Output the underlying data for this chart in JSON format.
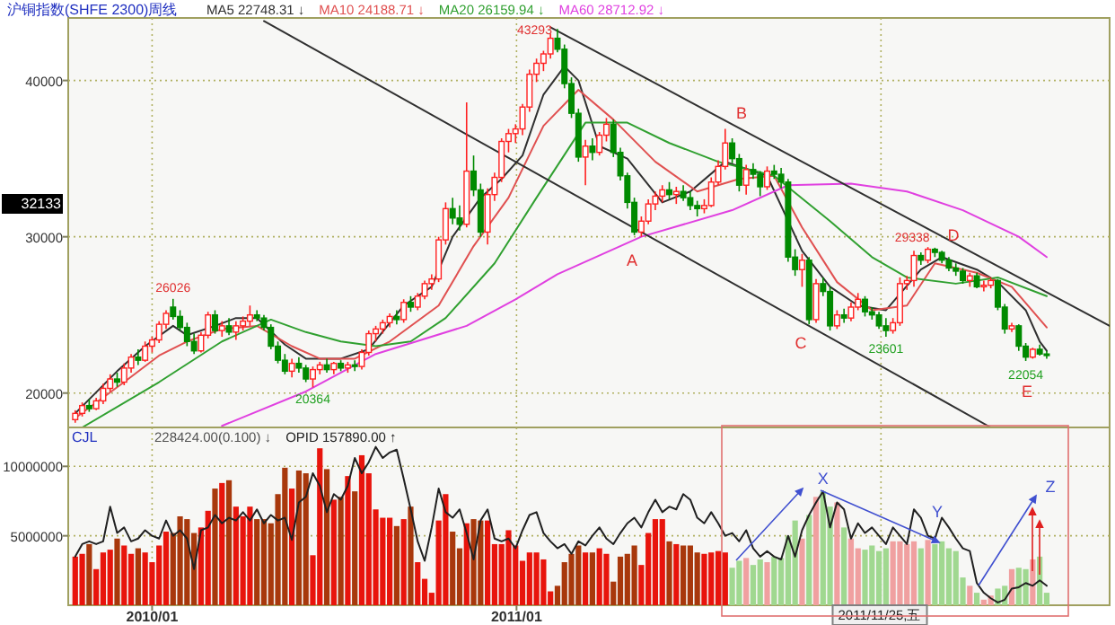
{
  "chart_data": [
    {
      "type": "candlestick",
      "title": "沪铜指数(SHFE 2300)周线",
      "legend": "top",
      "grid": true,
      "tick_labels": "y",
      "xlim": [
        "2009-10-09",
        "2012-08-17"
      ],
      "ylim": [
        17800,
        44000
      ],
      "yticks": [
        20000,
        30000,
        40000
      ],
      "xticks": [
        {
          "value": "2010-01-01",
          "label": null
        },
        {
          "value": "2011-01-01",
          "label": null
        },
        {
          "value": "2012-01-01",
          "label": null
        }
      ],
      "x": [
        "2009-10-16",
        "2009-10-23",
        "2009-10-30",
        "2009-11-06",
        "2009-11-13",
        "2009-11-20",
        "2009-11-27",
        "2009-12-04",
        "2009-12-11",
        "2009-12-18",
        "2009-12-25",
        "2010-01-01",
        "2010-01-08",
        "2010-01-15",
        "2010-01-22",
        "2010-01-29",
        "2010-02-05",
        "2010-02-12",
        "2010-02-19",
        "2010-02-26",
        "2010-03-05",
        "2010-03-12",
        "2010-03-19",
        "2010-03-26",
        "2010-04-02",
        "2010-04-09",
        "2010-04-16",
        "2010-04-23",
        "2010-04-30",
        "2010-05-07",
        "2010-05-14",
        "2010-05-21",
        "2010-05-28",
        "2010-06-04",
        "2010-06-11",
        "2010-06-18",
        "2010-06-25",
        "2010-07-02",
        "2010-07-09",
        "2010-07-16",
        "2010-07-23",
        "2010-07-30",
        "2010-08-06",
        "2010-08-13",
        "2010-08-20",
        "2010-08-27",
        "2010-09-03",
        "2010-09-10",
        "2010-09-17",
        "2010-09-24",
        "2010-10-01",
        "2010-10-08",
        "2010-10-15",
        "2010-10-22",
        "2010-10-29",
        "2010-11-05",
        "2010-11-12",
        "2010-11-19",
        "2010-11-26",
        "2010-12-03",
        "2010-12-10",
        "2010-12-17",
        "2010-12-24",
        "2010-12-31",
        "2011-01-07",
        "2011-01-14",
        "2011-01-21",
        "2011-01-28",
        "2011-02-04",
        "2011-02-11",
        "2011-02-18",
        "2011-02-25",
        "2011-03-04",
        "2011-03-11",
        "2011-03-18",
        "2011-03-25",
        "2011-04-01",
        "2011-04-08",
        "2011-04-15",
        "2011-04-22",
        "2011-04-29",
        "2011-05-06",
        "2011-05-13",
        "2011-05-20",
        "2011-05-27",
        "2011-06-03",
        "2011-06-10",
        "2011-06-17",
        "2011-06-24",
        "2011-07-01",
        "2011-07-08",
        "2011-07-15",
        "2011-07-22",
        "2011-07-29",
        "2011-08-05",
        "2011-08-12",
        "2011-08-19",
        "2011-08-26",
        "2011-09-02",
        "2011-09-09",
        "2011-09-16",
        "2011-09-23",
        "2011-09-30",
        "2011-10-07",
        "2011-10-14",
        "2011-10-21",
        "2011-10-28",
        "2011-11-04",
        "2011-11-11",
        "2011-11-18",
        "2011-11-25",
        "2011-12-02",
        "2011-12-09",
        "2011-12-16",
        "2011-12-23",
        "2011-12-30",
        "2012-01-06",
        "2012-01-13",
        "2012-01-20",
        "2012-01-27",
        "2012-02-03",
        "2012-02-10",
        "2012-02-17",
        "2012-02-24",
        "2012-03-02",
        "2012-03-09",
        "2012-03-16",
        "2012-03-23",
        "2012-03-30",
        "2012-04-06",
        "2012-04-13",
        "2012-04-20",
        "2012-04-27",
        "2012-05-04",
        "2012-05-11",
        "2012-05-18",
        "2012-05-25",
        "2012-06-01",
        "2012-06-08",
        "2012-06-15"
      ],
      "ohlc": [
        [
          18300,
          18900,
          18100,
          18700
        ],
        [
          18700,
          19400,
          18500,
          19200
        ],
        [
          19200,
          19600,
          18800,
          19000
        ],
        [
          19000,
          19700,
          18900,
          19500
        ],
        [
          19500,
          20600,
          19300,
          20300
        ],
        [
          20300,
          21200,
          20100,
          20900
        ],
        [
          20900,
          21300,
          20400,
          20700
        ],
        [
          20700,
          21900,
          20500,
          21600
        ],
        [
          21600,
          22500,
          21300,
          22300
        ],
        [
          22300,
          22800,
          21800,
          22100
        ],
        [
          22100,
          23300,
          22000,
          23000
        ],
        [
          23000,
          23600,
          22600,
          23400
        ],
        [
          23400,
          24600,
          23200,
          24400
        ],
        [
          24400,
          25300,
          24100,
          25100
        ],
        [
          25500,
          26026,
          24700,
          24900
        ],
        [
          24900,
          25300,
          24000,
          24200
        ],
        [
          24200,
          24500,
          23000,
          23300
        ],
        [
          23300,
          23800,
          22500,
          22700
        ],
        [
          22700,
          23900,
          22600,
          23700
        ],
        [
          23700,
          25200,
          23500,
          25000
        ],
        [
          25000,
          25300,
          23800,
          24000
        ],
        [
          24000,
          24600,
          23600,
          24300
        ],
        [
          24300,
          24800,
          23700,
          23900
        ],
        [
          23900,
          24600,
          23400,
          24300
        ],
        [
          24300,
          24900,
          24000,
          24600
        ],
        [
          24600,
          25600,
          24300,
          25000
        ],
        [
          25000,
          25300,
          24600,
          24800
        ],
        [
          24800,
          25000,
          24000,
          24200
        ],
        [
          24200,
          24400,
          22800,
          23000
        ],
        [
          23000,
          23300,
          21900,
          22100
        ],
        [
          22100,
          22500,
          21200,
          21400
        ],
        [
          21400,
          22200,
          21000,
          21900
        ],
        [
          21900,
          22300,
          21300,
          21600
        ],
        [
          21600,
          21800,
          20700,
          20900
        ],
        [
          20900,
          21700,
          20364,
          21500
        ],
        [
          21500,
          22000,
          21200,
          21800
        ],
        [
          21800,
          22200,
          21300,
          21500
        ],
        [
          21500,
          22000,
          21200,
          21900
        ],
        [
          21900,
          22100,
          21400,
          21600
        ],
        [
          21600,
          22000,
          21300,
          21800
        ],
        [
          21800,
          22100,
          21400,
          21700
        ],
        [
          21700,
          22800,
          21500,
          22600
        ],
        [
          22600,
          24000,
          22400,
          23800
        ],
        [
          23800,
          24300,
          23300,
          24100
        ],
        [
          24100,
          24700,
          23800,
          24500
        ],
        [
          24500,
          25100,
          24200,
          24900
        ],
        [
          24900,
          25300,
          24400,
          24700
        ],
        [
          24700,
          26000,
          24500,
          25800
        ],
        [
          25800,
          26200,
          25200,
          25500
        ],
        [
          25500,
          26400,
          25300,
          26200
        ],
        [
          26200,
          27200,
          26000,
          27000
        ],
        [
          27000,
          27600,
          26600,
          27300
        ],
        [
          27300,
          30000,
          27100,
          29800
        ],
        [
          29800,
          32200,
          29500,
          31800
        ],
        [
          31800,
          32500,
          30800,
          31200
        ],
        [
          31200,
          32000,
          30400,
          30800
        ],
        [
          30800,
          38600,
          30600,
          34200
        ],
        [
          34200,
          35200,
          32600,
          33000
        ],
        [
          33000,
          33400,
          30000,
          30300
        ],
        [
          30300,
          33100,
          29500,
          32700
        ],
        [
          32700,
          34100,
          32300,
          33800
        ],
        [
          33800,
          36300,
          33500,
          36100
        ],
        [
          36100,
          36900,
          35400,
          36600
        ],
        [
          36600,
          37200,
          36000,
          36900
        ],
        [
          36900,
          38500,
          36500,
          38300
        ],
        [
          38300,
          40700,
          38000,
          40400
        ],
        [
          40400,
          41400,
          39900,
          41100
        ],
        [
          41100,
          41900,
          40600,
          41700
        ],
        [
          41700,
          43000,
          41400,
          42700
        ],
        [
          42700,
          43293,
          41800,
          42000
        ],
        [
          42000,
          42300,
          39500,
          39800
        ],
        [
          39800,
          40200,
          37600,
          37900
        ],
        [
          37900,
          38200,
          34800,
          35100
        ],
        [
          35100,
          36200,
          33300,
          35800
        ],
        [
          35800,
          36300,
          34900,
          35400
        ],
        [
          35400,
          36700,
          35200,
          36500
        ],
        [
          36500,
          37600,
          36100,
          37200
        ],
        [
          37200,
          37500,
          35100,
          35400
        ],
        [
          35400,
          35700,
          33600,
          33900
        ],
        [
          33900,
          34100,
          31800,
          32200
        ],
        [
          32200,
          32500,
          30100,
          30300
        ],
        [
          30300,
          31300,
          30000,
          31000
        ],
        [
          31000,
          32400,
          30800,
          32100
        ],
        [
          32100,
          32900,
          31700,
          32600
        ],
        [
          32600,
          33300,
          32200,
          33000
        ],
        [
          33000,
          33500,
          32400,
          32700
        ],
        [
          32700,
          33200,
          32100,
          32900
        ],
        [
          32900,
          33300,
          32300,
          32500
        ],
        [
          32500,
          32900,
          31700,
          32000
        ],
        [
          32000,
          32300,
          31300,
          31800
        ],
        [
          31800,
          32400,
          31500,
          32000
        ],
        [
          32000,
          33800,
          31900,
          33500
        ],
        [
          33500,
          34900,
          33300,
          34500
        ],
        [
          34500,
          36900,
          34300,
          36000
        ],
        [
          36000,
          36300,
          34700,
          35000
        ],
        [
          35000,
          35300,
          32900,
          33300
        ],
        [
          33300,
          34600,
          32700,
          34300
        ],
        [
          34300,
          34700,
          33700,
          34000
        ],
        [
          34000,
          34200,
          32600,
          33200
        ],
        [
          33200,
          34500,
          33000,
          34200
        ],
        [
          34200,
          34600,
          33700,
          34000
        ],
        [
          34000,
          34400,
          33100,
          33500
        ],
        [
          33500,
          33700,
          28400,
          28700
        ],
        [
          28700,
          29200,
          27500,
          27900
        ],
        [
          27900,
          28900,
          26800,
          28500
        ],
        [
          28500,
          28700,
          24400,
          24700
        ],
        [
          24700,
          27300,
          24500,
          27000
        ],
        [
          27000,
          27400,
          26200,
          26500
        ],
        [
          26500,
          26800,
          24000,
          24300
        ],
        [
          24300,
          25300,
          24100,
          25000
        ],
        [
          25000,
          25400,
          24500,
          24800
        ],
        [
          24800,
          25800,
          24600,
          25500
        ],
        [
          25500,
          26400,
          25300,
          26000
        ],
        [
          26000,
          26200,
          24900,
          25200
        ],
        [
          25200,
          25500,
          24700,
          25000
        ],
        [
          25000,
          25200,
          24100,
          24300
        ],
        [
          24300,
          24800,
          23601,
          24000
        ],
        [
          24000,
          24800,
          23800,
          24500
        ],
        [
          24500,
          27400,
          24300,
          27000
        ],
        [
          27000,
          27500,
          26600,
          27200
        ],
        [
          27200,
          29100,
          26800,
          28800
        ],
        [
          28800,
          29000,
          28200,
          28500
        ],
        [
          28500,
          29338,
          28300,
          29200
        ],
        [
          29200,
          29300,
          28700,
          29000
        ],
        [
          29000,
          29100,
          28300,
          28500
        ],
        [
          28500,
          28700,
          27800,
          28000
        ],
        [
          28000,
          28300,
          27500,
          27800
        ],
        [
          27800,
          28000,
          27000,
          27200
        ],
        [
          27200,
          27700,
          26800,
          27500
        ],
        [
          27500,
          27700,
          26700,
          26800
        ],
        [
          26800,
          27200,
          26500,
          26900
        ],
        [
          26900,
          27400,
          26700,
          27200
        ],
        [
          27200,
          27300,
          25300,
          25500
        ],
        [
          25500,
          25700,
          23800,
          24100
        ],
        [
          24100,
          24500,
          23900,
          24300
        ],
        [
          24300,
          24400,
          22700,
          23000
        ],
        [
          23000,
          23200,
          22054,
          22300
        ],
        [
          22300,
          22900,
          22200,
          22800
        ],
        [
          22800,
          23100,
          22400,
          22500
        ],
        [
          22500,
          22700,
          22200,
          22400
        ]
      ],
      "series": [
        {
          "type": "line",
          "name": "MA5 22748.31 ↓",
          "color": "#303030",
          "x": [
            "2009-10-16",
            "2009-11-27",
            "2009-12-25",
            "2010-01-22",
            "2010-02-05",
            "2010-03-05",
            "2010-03-26",
            "2010-04-16",
            "2010-05-14",
            "2010-06-04",
            "2010-07-09",
            "2010-08-06",
            "2010-09-10",
            "2010-10-08",
            "2010-10-29",
            "2010-11-26",
            "2010-12-17",
            "2011-01-07",
            "2011-01-28",
            "2011-02-18",
            "2011-03-04",
            "2011-03-25",
            "2011-04-22",
            "2011-05-27",
            "2011-06-24",
            "2011-07-29",
            "2011-09-09",
            "2011-10-14",
            "2011-11-11",
            "2011-12-09",
            "2012-01-06",
            "2012-02-10",
            "2012-03-02",
            "2012-04-06",
            "2012-04-27",
            "2012-05-25",
            "2012-06-08",
            "2012-06-15"
          ],
          "values": [
            18700,
            21400,
            23000,
            24300,
            23700,
            24300,
            24800,
            24800,
            23100,
            22200,
            22200,
            22800,
            25600,
            26800,
            30000,
            32500,
            33700,
            35200,
            39100,
            40900,
            40000,
            35800,
            35000,
            32200,
            32900,
            34800,
            33900,
            29100,
            26800,
            25600,
            25300,
            27900,
            28700,
            27900,
            27100,
            25300,
            23300,
            22700
          ]
        },
        {
          "type": "line",
          "name": "MA10 24188.71 ↓",
          "color": "#e05050",
          "x": [
            "2009-10-16",
            "2009-12-04",
            "2010-01-08",
            "2010-02-05",
            "2010-03-12",
            "2010-04-16",
            "2010-05-21",
            "2010-06-18",
            "2010-07-23",
            "2010-08-27",
            "2010-10-15",
            "2010-11-19",
            "2010-12-24",
            "2011-01-28",
            "2011-03-04",
            "2011-04-08",
            "2011-05-20",
            "2011-07-01",
            "2011-08-12",
            "2011-09-16",
            "2011-10-14",
            "2011-11-18",
            "2011-12-23",
            "2012-01-27",
            "2012-02-24",
            "2012-04-06",
            "2012-05-11",
            "2012-06-15"
          ],
          "values": [
            18400,
            20700,
            22400,
            23300,
            24100,
            24300,
            23000,
            22200,
            22200,
            23300,
            25600,
            29400,
            32500,
            37100,
            39400,
            37500,
            34800,
            32900,
            33700,
            33900,
            30600,
            27100,
            25300,
            25600,
            28300,
            27700,
            26800,
            24200
          ]
        },
        {
          "type": "line",
          "name": "MA20 26159.94 ↓",
          "color": "#30a030",
          "x": [
            "2009-10-23",
            "2010-01-08",
            "2010-03-12",
            "2010-04-30",
            "2010-06-04",
            "2010-07-09",
            "2010-08-13",
            "2010-09-17",
            "2010-10-22",
            "2010-12-10",
            "2011-01-21",
            "2011-03-11",
            "2011-04-22",
            "2011-06-03",
            "2011-07-22",
            "2011-09-16",
            "2011-11-11",
            "2011-12-23",
            "2012-01-27",
            "2012-03-16",
            "2012-04-27",
            "2012-06-15"
          ],
          "values": [
            17800,
            20700,
            23300,
            24700,
            23900,
            23300,
            23000,
            23300,
            24800,
            28300,
            32500,
            37300,
            37300,
            36000,
            34800,
            33900,
            31000,
            28700,
            27400,
            27000,
            27400,
            26200
          ]
        },
        {
          "type": "line",
          "name": "MA60 28712.92 ↓",
          "color": "#e040e0",
          "x": [
            "2010-03-12",
            "2010-06-04",
            "2010-08-13",
            "2010-11-12",
            "2010-12-31",
            "2011-02-11",
            "2011-05-06",
            "2011-08-05",
            "2011-09-30",
            "2011-12-02",
            "2012-01-27",
            "2012-03-23",
            "2012-05-18",
            "2012-06-15"
          ],
          "values": [
            17900,
            20100,
            22500,
            24300,
            26000,
            27600,
            30000,
            31700,
            33300,
            33400,
            32900,
            31700,
            30000,
            28700
          ]
        },
        {
          "type": "line",
          "color": "#303030",
          "x": [
            "2010-04-23",
            "2012-04-20"
          ],
          "values": [
            43800,
            17800
          ]
        },
        {
          "type": "line",
          "color": "#303030",
          "x": [
            "2011-02-04",
            "2012-08-17"
          ],
          "values": [
            43400,
            24300
          ]
        }
      ],
      "annotations": [
        {
          "text": "43293",
          "x": "2011-02-11",
          "y": 43293
        },
        {
          "text": "26026",
          "x": "2010-01-22",
          "y": 26026
        },
        {
          "text": "20364",
          "x": "2010-06-11",
          "y": 20364
        },
        {
          "text": "23601",
          "x": "2012-01-06",
          "y": 23601
        },
        {
          "text": "29338",
          "x": "2012-02-17",
          "y": 29338
        },
        {
          "text": "22054",
          "x": "2012-05-25",
          "y": 22054
        },
        "A",
        "B",
        "C",
        "D",
        "E",
        "32133"
      ]
    },
    {
      "type": "bar",
      "title": "CJL",
      "legend": "top left",
      "grid": true,
      "xlim": [
        "2009-10-09",
        "2012-08-17"
      ],
      "ylim": [
        0,
        12800000
      ],
      "yticks": [
        5000000,
        10000000
      ],
      "xticks": [
        {
          "value": "2010-01-01",
          "label": "2010/01"
        },
        {
          "value": "2011-01-01",
          "label": "2011/01"
        },
        {
          "value": "2012-01-01",
          "label": null
        }
      ],
      "x": [
        "2009-10-16",
        "2009-10-23",
        "2009-10-30",
        "2009-11-06",
        "2009-11-13",
        "2009-11-20",
        "2009-11-27",
        "2009-12-04",
        "2009-12-11",
        "2009-12-18",
        "2009-12-25",
        "2010-01-01",
        "2010-01-08",
        "2010-01-15",
        "2010-01-22",
        "2010-01-29",
        "2010-02-05",
        "2010-02-12",
        "2010-02-19",
        "2010-02-26",
        "2010-03-05",
        "2010-03-12",
        "2010-03-19",
        "2010-03-26",
        "2010-04-02",
        "2010-04-09",
        "2010-04-16",
        "2010-04-23",
        "2010-04-30",
        "2010-05-07",
        "2010-05-14",
        "2010-05-21",
        "2010-05-28",
        "2010-06-04",
        "2010-06-11",
        "2010-06-18",
        "2010-06-25",
        "2010-07-02",
        "2010-07-09",
        "2010-07-16",
        "2010-07-23",
        "2010-07-30",
        "2010-08-06",
        "2010-08-13",
        "2010-08-20",
        "2010-08-27",
        "2010-09-03",
        "2010-09-10",
        "2010-09-17",
        "2010-09-24",
        "2010-10-01",
        "2010-10-08",
        "2010-10-15",
        "2010-10-22",
        "2010-10-29",
        "2010-11-05",
        "2010-11-12",
        "2010-11-19",
        "2010-11-26",
        "2010-12-03",
        "2010-12-10",
        "2010-12-17",
        "2010-12-24",
        "2010-12-31",
        "2011-01-07",
        "2011-01-14",
        "2011-01-21",
        "2011-01-28",
        "2011-02-04",
        "2011-02-11",
        "2011-02-18",
        "2011-02-25",
        "2011-03-04",
        "2011-03-11",
        "2011-03-18",
        "2011-03-25",
        "2011-04-01",
        "2011-04-08",
        "2011-04-15",
        "2011-04-22",
        "2011-04-29",
        "2011-05-06",
        "2011-05-13",
        "2011-05-20",
        "2011-05-27",
        "2011-06-03",
        "2011-06-10",
        "2011-06-17",
        "2011-06-24",
        "2011-07-01",
        "2011-07-08",
        "2011-07-15",
        "2011-07-22",
        "2011-07-29",
        "2011-08-05",
        "2011-08-12",
        "2011-08-19",
        "2011-08-26",
        "2011-09-02",
        "2011-09-09",
        "2011-09-16",
        "2011-09-23",
        "2011-09-30",
        "2011-10-07",
        "2011-10-14",
        "2011-10-21",
        "2011-10-28",
        "2011-11-04",
        "2011-11-11",
        "2011-11-18",
        "2011-11-25",
        "2011-12-02",
        "2011-12-09",
        "2011-12-16",
        "2011-12-23",
        "2011-12-30",
        "2012-01-06",
        "2012-01-13",
        "2012-01-20",
        "2012-01-27",
        "2012-02-03",
        "2012-02-10",
        "2012-02-17",
        "2012-02-24",
        "2012-03-02",
        "2012-03-09",
        "2012-03-16",
        "2012-03-23",
        "2012-03-30",
        "2012-04-06",
        "2012-04-13",
        "2012-04-20",
        "2012-04-27",
        "2012-05-04",
        "2012-05-11",
        "2012-05-18",
        "2012-05-25",
        "2012-06-01",
        "2012-06-08",
        "2012-06-15"
      ],
      "series": [
        {
          "name": "228424.00(0.100) ↓",
          "color": "#505050",
          "values": [
            3500000,
            3700000,
            4400000,
            2600000,
            3800000,
            4000000,
            4800000,
            4300000,
            3700000,
            4100000,
            3800000,
            3100000,
            4300000,
            5300000,
            5200000,
            6400000,
            6200000,
            5200000,
            5600000,
            6800000,
            8400000,
            8800000,
            9000000,
            7100000,
            6400000,
            7100000,
            6200000,
            6200000,
            5900000,
            8000000,
            9900000,
            8400000,
            9700000,
            9500000,
            3600000,
            11300000,
            9800000,
            7600000,
            7800000,
            9300000,
            8200000,
            10800000,
            9500000,
            6900000,
            6300000,
            6300000,
            5700000,
            6200000,
            7100000,
            3100000,
            1900000,
            900000,
            6100000,
            8000000,
            5300000,
            4100000,
            5900000,
            6200000,
            6100000,
            6100000,
            4400000,
            4400000,
            5400000,
            4300000,
            3200000,
            3800000,
            3800000,
            3300000,
            1000000,
            1400000,
            3100000,
            3700000,
            4300000,
            3800000,
            3800000,
            4100000,
            3700000,
            1700000,
            3500000,
            3700000,
            4300000,
            2900000,
            5200000,
            6200000,
            6200000,
            4600000,
            4400000,
            4300000,
            4300000,
            3800000,
            3700000,
            3800000,
            3900000,
            3800000,
            2700000,
            3200000,
            3400000,
            2900000,
            3300000,
            3100000,
            3500000,
            3400000,
            5000000,
            6100000,
            4800000,
            6500000,
            7800000,
            8200000,
            7100000,
            7400000,
            5600000,
            4800000,
            4100000,
            4000000,
            4300000,
            3900000,
            4100000,
            4600000,
            4600000,
            4400000,
            4600000,
            4100000,
            4700000,
            4400000,
            4600000,
            4100000,
            3900000,
            2000000,
            1400000,
            900000,
            400000,
            700000,
            1200000,
            1400000,
            2600000,
            2700000,
            2600000,
            3300000,
            3500000,
            900000
          ],
          "colors": [
            "#e8140c",
            "#e8140c",
            "#a8380c",
            "#e8140c",
            "#e8140c",
            "#e8140c",
            "#a8380c",
            "#e8140c",
            "#e8140c",
            "#a8380c",
            "#e8140c",
            "#e8140c",
            "#e8140c",
            "#e8140c",
            "#a8380c",
            "#a8380c",
            "#a8380c",
            "#a8380c",
            "#e8140c",
            "#e8140c",
            "#a8380c",
            "#e8140c",
            "#a8380c",
            "#e8140c",
            "#e8140c",
            "#e8140c",
            "#a8380c",
            "#a8380c",
            "#a8380c",
            "#a8380c",
            "#a8380c",
            "#e8140c",
            "#a8380c",
            "#a8380c",
            "#e8140c",
            "#e8140c",
            "#a8380c",
            "#e8140c",
            "#a8380c",
            "#e8140c",
            "#a8380c",
            "#e8140c",
            "#e8140c",
            "#e8140c",
            "#e8140c",
            "#e8140c",
            "#a8380c",
            "#e8140c",
            "#a8380c",
            "#e8140c",
            "#e8140c",
            "#e8140c",
            "#e8140c",
            "#e8140c",
            "#a8380c",
            "#a8380c",
            "#e8140c",
            "#a8380c",
            "#a8380c",
            "#e8140c",
            "#e8140c",
            "#e8140c",
            "#e8140c",
            "#e8140c",
            "#e8140c",
            "#e8140c",
            "#e8140c",
            "#e8140c",
            "#e8140c",
            "#a8380c",
            "#a8380c",
            "#a8380c",
            "#a8380c",
            "#e8140c",
            "#a8380c",
            "#e8140c",
            "#e8140c",
            "#a8380c",
            "#a8380c",
            "#a8380c",
            "#a8380c",
            "#e8140c",
            "#e8140c",
            "#e8140c",
            "#e8140c",
            "#a8380c",
            "#e8140c",
            "#a8380c",
            "#a8380c",
            "#a8380c",
            "#e8140c",
            "#e8140c",
            "#e8140c",
            "#e8140c",
            "#a0d890",
            "#a0d890",
            "#f0a0a0",
            "#a0d890",
            "#a0d890",
            "#f0a0a0",
            "#a0d890",
            "#a0d890",
            "#a0d890",
            "#a0d890",
            "#f0a0a0",
            "#a0d890",
            "#f0a0a0",
            "#a0d890",
            "#a0d890",
            "#f0a0a0",
            "#a0d890",
            "#f0a0a0",
            "#f0a0a0",
            "#a0d890",
            "#a0d890",
            "#a0d890",
            "#a0d890",
            "#f0a0a0",
            "#f0a0a0",
            "#f0a0a0",
            "#f0a0a0",
            "#a0d890",
            "#f0a0a0",
            "#a0d890",
            "#a0d890",
            "#a0d890",
            "#a0d890",
            "#a0d890",
            "#f0a0a0",
            "#a0d890",
            "#f0a0a0",
            "#f0a0a0",
            "#a0d890",
            "#a0d890",
            "#f0a0a0",
            "#a0d890",
            "#a0d890",
            "#f0a0a0",
            "#a0d890",
            "#a0d890"
          ]
        },
        {
          "type": "line",
          "name": "OPID 157890.00 ↑",
          "color": "#202020",
          "values": [
            3500000,
            4400000,
            4600000,
            4400000,
            4600000,
            7100000,
            5200000,
            5600000,
            4600000,
            4800000,
            5400000,
            5000000,
            4800000,
            6100000,
            5000000,
            5400000,
            4800000,
            2600000,
            5400000,
            5600000,
            6500000,
            5900000,
            6300000,
            6100000,
            6700000,
            6100000,
            6900000,
            5900000,
            6500000,
            6100000,
            6300000,
            4700000,
            7400000,
            7800000,
            9500000,
            8600000,
            6700000,
            8000000,
            7600000,
            8600000,
            10600000,
            9500000,
            10300000,
            11400000,
            10600000,
            11000000,
            11200000,
            9100000,
            6900000,
            4600000,
            3200000,
            5600000,
            8400000,
            6700000,
            6300000,
            6900000,
            5200000,
            3300000,
            6100000,
            6900000,
            4800000,
            4600000,
            4800000,
            4100000,
            5400000,
            6500000,
            6700000,
            5200000,
            4600000,
            4100000,
            4400000,
            3700000,
            4600000,
            4300000,
            5000000,
            5600000,
            4800000,
            4400000,
            5200000,
            5900000,
            6300000,
            5600000,
            6700000,
            7600000,
            6700000,
            7100000,
            6900000,
            8000000,
            7600000,
            6300000,
            5900000,
            6700000,
            5900000,
            5000000,
            5200000,
            4600000,
            5400000,
            4100000,
            3500000,
            3900000,
            3500000,
            3300000,
            5000000,
            3500000,
            5400000,
            6500000,
            7400000,
            8200000,
            5600000,
            7400000,
            6900000,
            4800000,
            5900000,
            5200000,
            5600000,
            5000000,
            4400000,
            5600000,
            5000000,
            4400000,
            6900000,
            6300000,
            5000000,
            4800000,
            6300000,
            5600000,
            4800000,
            4100000,
            3900000,
            1600000,
            900000,
            500000,
            200000,
            400000,
            1200000,
            1300000,
            1600000,
            1400000,
            1800000,
            1400000
          ]
        }
      ],
      "annotations": [
        {
          "text": "X",
          "x": "2011-11-04",
          "y": 8200000
        },
        "Y",
        "Z",
        "2011/11/25,五"
      ]
    }
  ]
}
